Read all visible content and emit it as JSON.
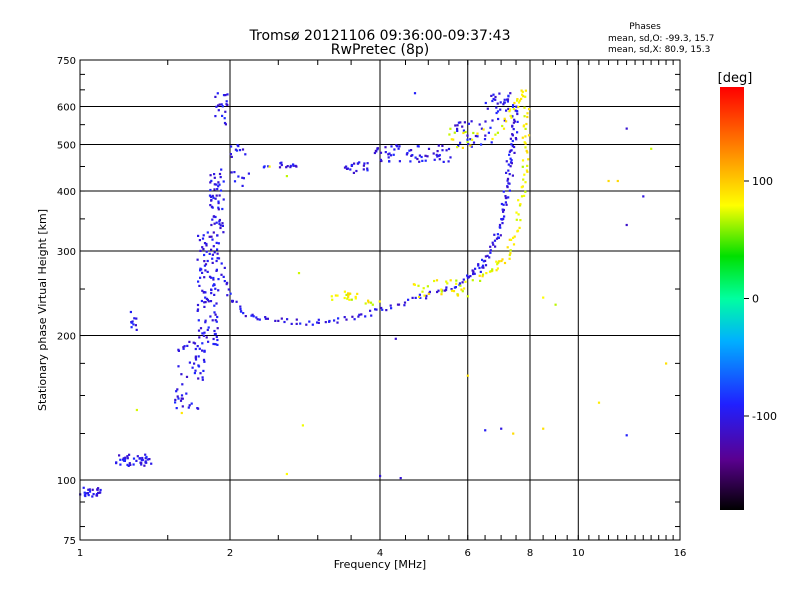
{
  "title": {
    "line1": "Tromsø 20121106 09:36:00-09:37:43",
    "line2": "RwPretec (8p)"
  },
  "stats": {
    "heading": "Phases",
    "line1": "mean, sd,O: -99.3, 15.7",
    "line2": "mean, sd,X:  80.9, 15.3"
  },
  "colorbar": {
    "unit_label": "[deg]",
    "range": [
      -180,
      180
    ],
    "tick_values": [
      100,
      0,
      -100
    ],
    "tick_labels": [
      "100",
      "0",
      "-100"
    ]
  },
  "chart_data": {
    "type": "scatter",
    "xlabel": "Frequency [MHz]",
    "ylabel": "Stationary phase Virtual Height [km]",
    "x_scale": "log",
    "y_scale": "log",
    "xlim": [
      1,
      16
    ],
    "ylim": [
      75,
      750
    ],
    "x_ticks": [
      1,
      2,
      4,
      6,
      8,
      10,
      16
    ],
    "x_tick_labels": [
      "1",
      "2",
      "4",
      "6",
      "8",
      "10",
      "16"
    ],
    "y_ticks": [
      75,
      100,
      200,
      300,
      400,
      500,
      600,
      750
    ],
    "y_tick_labels": [
      "75",
      "100",
      "200",
      "300",
      "400",
      "500",
      "600",
      "750"
    ],
    "grid": true,
    "series": [
      {
        "name": "O",
        "color_phase": -100,
        "clusters": [
          {
            "x": [
              1.0,
              1.1
            ],
            "y": [
              92,
              97
            ],
            "n": 25
          },
          {
            "x": [
              1.18,
              1.4
            ],
            "y": [
              107,
              113
            ],
            "n": 40
          },
          {
            "x": [
              1.25,
              1.3
            ],
            "y": [
              205,
              225
            ],
            "n": 10
          },
          {
            "x": [
              1.55,
              1.78
            ],
            "y": [
              140,
              200
            ],
            "n": 55
          },
          {
            "x": [
              1.72,
              1.9
            ],
            "y": [
              190,
              330
            ],
            "n": 110
          },
          {
            "x": [
              1.82,
              1.95
            ],
            "y": [
              320,
              450
            ],
            "n": 55
          },
          {
            "x": [
              1.86,
              1.98
            ],
            "y": [
              550,
              640
            ],
            "n": 20
          },
          {
            "x": [
              2.0,
              2.15
            ],
            "y": [
              470,
              510
            ],
            "n": 10
          },
          {
            "x": [
              2.0,
              2.2
            ],
            "y": [
              410,
              440
            ],
            "n": 8
          },
          {
            "x": [
              2.3,
              2.75
            ],
            "y": [
              445,
              460
            ],
            "n": 15
          },
          {
            "x": [
              3.4,
              3.8
            ],
            "y": [
              435,
              460
            ],
            "n": 20
          },
          {
            "x": [
              3.9,
              5.6
            ],
            "y": [
              460,
              500
            ],
            "n": 60
          },
          {
            "x": [
              5.6,
              6.7
            ],
            "y": [
              495,
              560
            ],
            "n": 30
          },
          {
            "x": [
              6.5,
              7.4
            ],
            "y": [
              560,
              640
            ],
            "n": 30
          }
        ],
        "traces": [
          {
            "x": [
              1.93,
              2.0,
              2.15,
              2.4,
              2.8,
              3.2,
              3.7,
              4.2,
              4.8,
              5.4,
              6.0,
              6.5,
              6.9,
              7.1,
              7.25,
              7.35,
              7.45
            ],
            "y": [
              280,
              240,
              222,
              216,
              213,
              214,
              220,
              230,
              240,
              250,
              262,
              280,
              320,
              380,
              450,
              520,
              600
            ],
            "n": 150,
            "jitter": 0.012
          },
          {
            "x": [
              6.0,
              6.5,
              6.9,
              7.2,
              7.35,
              7.45,
              7.5
            ],
            "y": [
              265,
              285,
              330,
              390,
              460,
              530,
              600
            ],
            "n": 50,
            "jitter": 0.015
          }
        ],
        "scatter": [
          [
            4.0,
            102
          ],
          [
            4.4,
            101
          ],
          [
            4.3,
            197
          ],
          [
            6.5,
            127
          ],
          [
            7.0,
            128
          ],
          [
            12.5,
            124
          ],
          [
            12.5,
            540
          ],
          [
            12.5,
            340
          ],
          [
            13.5,
            390
          ],
          [
            4.7,
            640
          ],
          [
            7.3,
            640
          ]
        ]
      },
      {
        "name": "X",
        "color_phase": 80,
        "clusters": [
          {
            "x": [
              3.2,
              3.6
            ],
            "y": [
              237,
              247
            ],
            "n": 18
          },
          {
            "x": [
              3.7,
              4.0
            ],
            "y": [
              232,
              238
            ],
            "n": 6
          },
          {
            "x": [
              4.6,
              6.0
            ],
            "y": [
              240,
              262
            ],
            "n": 30
          },
          {
            "x": [
              5.5,
              6.5
            ],
            "y": [
              490,
              540
            ],
            "n": 15
          }
        ],
        "traces": [
          {
            "x": [
              6.2,
              6.8,
              7.2,
              7.5,
              7.7,
              7.8,
              7.85,
              7.9
            ],
            "y": [
              262,
              275,
              295,
              330,
              390,
              450,
              520,
              600
            ],
            "n": 70,
            "jitter": 0.015
          },
          {
            "x": [
              6.8,
              7.2,
              7.5,
              7.7,
              7.8
            ],
            "y": [
              520,
              560,
              600,
              630,
              640
            ],
            "n": 25,
            "jitter": 0.015
          }
        ],
        "scatter": [
          [
            2.6,
            103
          ],
          [
            2.8,
            130
          ],
          [
            2.75,
            270
          ],
          [
            1.3,
            140
          ],
          [
            1.6,
            138
          ],
          [
            6.0,
            165
          ],
          [
            7.4,
            125
          ],
          [
            8.5,
            128
          ],
          [
            8.5,
            240
          ],
          [
            9.0,
            232
          ],
          [
            11.0,
            145
          ],
          [
            11.5,
            420
          ],
          [
            12.0,
            420
          ],
          [
            15.0,
            175
          ],
          [
            14.0,
            490
          ],
          [
            2.4,
            450
          ],
          [
            2.6,
            430
          ]
        ]
      }
    ]
  }
}
